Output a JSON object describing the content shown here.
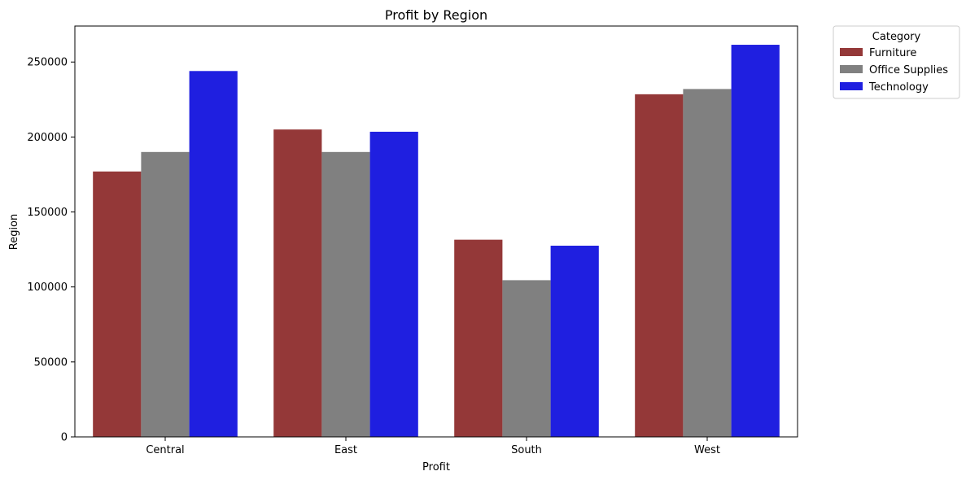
{
  "chart_data": {
    "type": "bar",
    "title": "Profit by Region",
    "xlabel": "Profit",
    "ylabel": "Region",
    "categories": [
      "Central",
      "East",
      "South",
      "West"
    ],
    "series": [
      {
        "name": "Furniture",
        "color": "#943838",
        "values": [
          177000,
          205000,
          131500,
          228500
        ]
      },
      {
        "name": "Office Supplies",
        "color": "#808080",
        "values": [
          190000,
          190000,
          104500,
          232000
        ]
      },
      {
        "name": "Technology",
        "color": "#1f1fe0",
        "values": [
          244000,
          203500,
          127500,
          261500
        ]
      }
    ],
    "ylim": [
      0,
      274000
    ],
    "yticks": [
      0,
      50000,
      100000,
      150000,
      200000,
      250000
    ],
    "legend": {
      "title": "Category",
      "placement": "outside-top-right"
    },
    "grid": false
  }
}
